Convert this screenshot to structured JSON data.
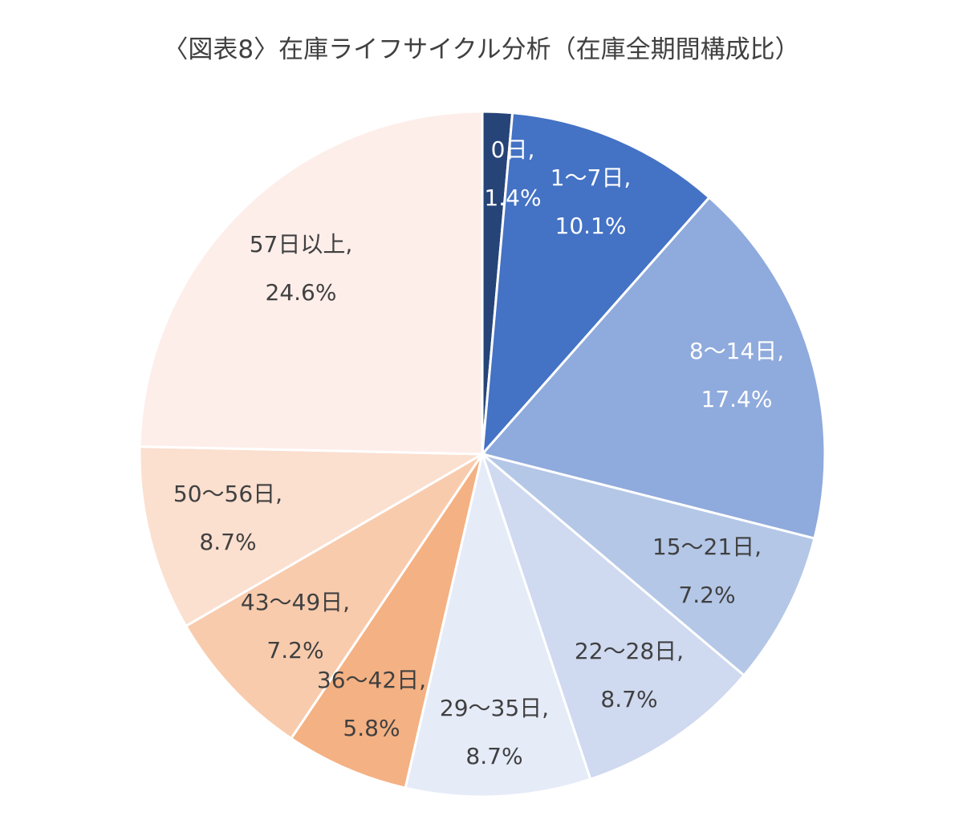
{
  "chart_data": {
    "type": "pie",
    "title": "〈図表8〉在庫ライフサイクル分析（在庫全期間構成比）",
    "slices": [
      {
        "name": "0日",
        "value": 1.4,
        "label": "1.4%",
        "color": "#264478",
        "label_color": "#ffffff"
      },
      {
        "name": "1～7日",
        "value": 10.1,
        "label": "10.1%",
        "color": "#4472c4",
        "label_color": "#ffffff"
      },
      {
        "name": "8～14日",
        "value": 17.4,
        "label": "17.4%",
        "color": "#8faadc",
        "label_color": "#ffffff"
      },
      {
        "name": "15～21日",
        "value": 7.2,
        "label": "7.2%",
        "color": "#b4c7e7",
        "label_color": "#404040"
      },
      {
        "name": "22～28日",
        "value": 8.7,
        "label": "8.7%",
        "color": "#cfd9f0",
        "label_color": "#404040"
      },
      {
        "name": "29～35日",
        "value": 8.7,
        "label": "8.7%",
        "color": "#e6ebf8",
        "label_color": "#404040"
      },
      {
        "name": "36～42日",
        "value": 5.8,
        "label": "5.8%",
        "color": "#f4b183",
        "label_color": "#404040"
      },
      {
        "name": "43～49日",
        "value": 7.2,
        "label": "7.2%",
        "color": "#f8cbad",
        "label_color": "#404040"
      },
      {
        "name": "50～56日",
        "value": 8.7,
        "label": "8.7%",
        "color": "#fbdfcf",
        "label_color": "#404040"
      },
      {
        "name": "57日以上",
        "value": 24.6,
        "label": "24.6%",
        "color": "#fdeeea",
        "label_color": "#404040"
      }
    ]
  }
}
